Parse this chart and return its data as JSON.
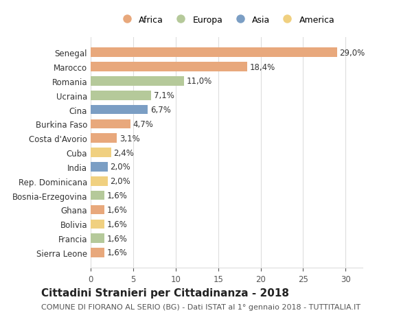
{
  "categories": [
    "Sierra Leone",
    "Francia",
    "Bolivia",
    "Ghana",
    "Bosnia-Erzegovina",
    "Rep. Dominicana",
    "India",
    "Cuba",
    "Costa d'Avorio",
    "Burkina Faso",
    "Cina",
    "Ucraina",
    "Romania",
    "Marocco",
    "Senegal"
  ],
  "values": [
    1.6,
    1.6,
    1.6,
    1.6,
    1.6,
    2.0,
    2.0,
    2.4,
    3.1,
    4.7,
    6.7,
    7.1,
    11.0,
    18.4,
    29.0
  ],
  "labels": [
    "1,6%",
    "1,6%",
    "1,6%",
    "1,6%",
    "1,6%",
    "2,0%",
    "2,0%",
    "2,4%",
    "3,1%",
    "4,7%",
    "6,7%",
    "7,1%",
    "11,0%",
    "18,4%",
    "29,0%"
  ],
  "continents": [
    "Africa",
    "Europa",
    "America",
    "Africa",
    "Europa",
    "America",
    "Asia",
    "America",
    "Africa",
    "Africa",
    "Asia",
    "Europa",
    "Europa",
    "Africa",
    "Africa"
  ],
  "colors": {
    "Africa": "#E8A87C",
    "Europa": "#B5C99A",
    "Asia": "#7B9EC4",
    "America": "#F0D080"
  },
  "legend_order": [
    "Africa",
    "Europa",
    "Asia",
    "America"
  ],
  "xlim": [
    0,
    32
  ],
  "xticks": [
    0,
    5,
    10,
    15,
    20,
    25,
    30
  ],
  "title": "Cittadini Stranieri per Cittadinanza - 2018",
  "subtitle": "COMUNE DI FIORANO AL SERIO (BG) - Dati ISTAT al 1° gennaio 2018 - TUTTITALIA.IT",
  "bar_height": 0.65,
  "background_color": "#ffffff",
  "grid_color": "#dddddd",
  "label_fontsize": 8.5,
  "tick_fontsize": 8.5,
  "title_fontsize": 11,
  "subtitle_fontsize": 8
}
